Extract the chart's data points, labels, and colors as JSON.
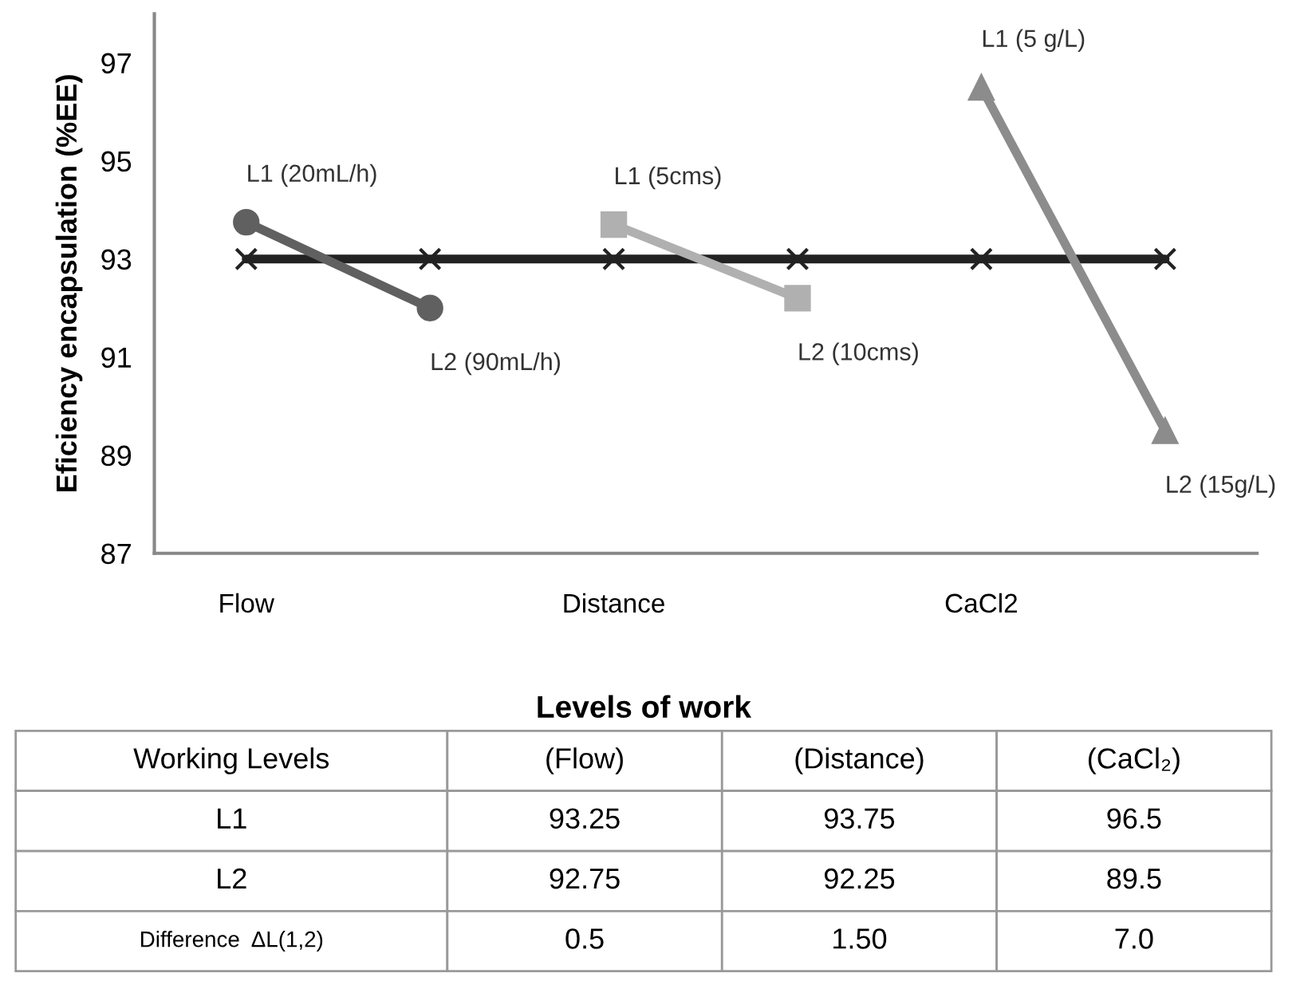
{
  "chart_data": [
    {
      "type": "line",
      "ylabel": "Eficiency encapsulation (%EE)",
      "categories": [
        "Flow",
        null,
        "Distance",
        null,
        "CaCl2",
        null
      ],
      "ylim": [
        87,
        98
      ],
      "yticks": [
        87,
        89,
        91,
        93,
        95,
        97
      ],
      "grid": false,
      "legend": false,
      "series": [
        {
          "color": "#222222",
          "marker": "cross",
          "values": [
            93,
            93,
            93,
            93,
            93,
            93
          ]
        },
        {
          "color": "#606060",
          "marker": "circle",
          "values": [
            93.75,
            92.0,
            null,
            null,
            null,
            null
          ],
          "value_labels": [
            "L1 (20mL/h)",
            "L2 (90mL/h)",
            null,
            null,
            null,
            null
          ]
        },
        {
          "color": "#b0b0b0",
          "marker": "square",
          "values": [
            null,
            null,
            93.7,
            92.2,
            null,
            null
          ],
          "value_labels": [
            null,
            null,
            "L1 (5cms)",
            "L2 (10cms)",
            null,
            null
          ]
        },
        {
          "color": "#8c8c8c",
          "marker": "triangle",
          "values": [
            null,
            null,
            null,
            null,
            96.5,
            89.5
          ],
          "value_labels": [
            null,
            null,
            null,
            null,
            "L1 (5 g/L)",
            "L2 (15g/L)"
          ]
        }
      ]
    },
    {
      "type": "other",
      "title": "Levels of work",
      "categories": [
        "Working Levels",
        "(Flow)",
        "(Distance)",
        "(CaCl₂)"
      ],
      "y_categories": [
        "L1",
        "L2",
        "Difference  ΔL(1,2)"
      ],
      "cell_labels": [
        [
          "93.25",
          "93.75",
          "96.5"
        ],
        [
          "92.75",
          "92.25",
          "89.5"
        ],
        [
          "0.5",
          "1.50",
          "7.0"
        ]
      ]
    }
  ]
}
